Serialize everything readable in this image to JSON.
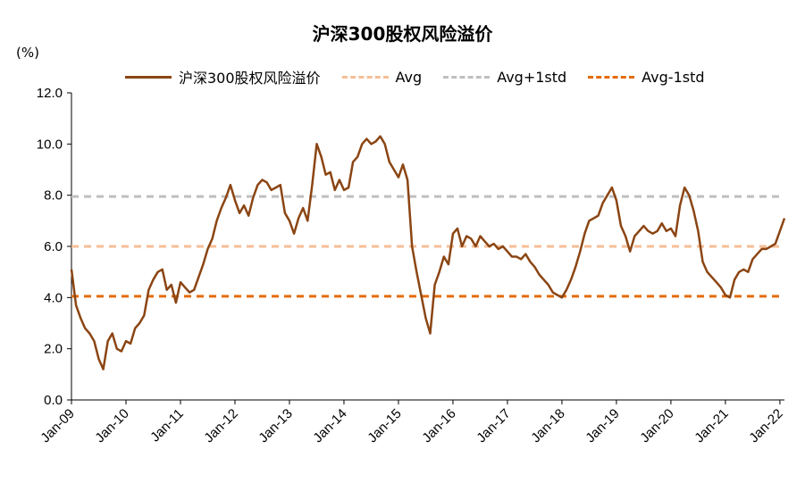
{
  "chart_data": {
    "type": "line",
    "title": "沪深300股权风险溢价",
    "ylabel": "(%)",
    "xlabel": "",
    "ylim": [
      0,
      12
    ],
    "yticks": [
      "0.0",
      "2.0",
      "4.0",
      "6.0",
      "8.0",
      "10.0",
      "12.0"
    ],
    "xticks": [
      "Jan-09",
      "Jan-10",
      "Jan-11",
      "Jan-12",
      "Jan-13",
      "Jan-14",
      "Jan-15",
      "Jan-16",
      "Jan-17",
      "Jan-18",
      "Jan-19",
      "Jan-20",
      "Jan-21",
      "Jan-22"
    ],
    "xlim": [
      "2009-01",
      "2022-02"
    ],
    "legend_position": "top",
    "grid": false,
    "series": [
      {
        "name": "沪深300股权风险溢价",
        "style": "solid",
        "color": "#8B4513",
        "points": [
          [
            "2009-01",
            5.1
          ],
          [
            "2009-02",
            3.7
          ],
          [
            "2009-03",
            3.2
          ],
          [
            "2009-04",
            2.8
          ],
          [
            "2009-05",
            2.6
          ],
          [
            "2009-06",
            2.3
          ],
          [
            "2009-07",
            1.6
          ],
          [
            "2009-08",
            1.2
          ],
          [
            "2009-09",
            2.3
          ],
          [
            "2009-10",
            2.6
          ],
          [
            "2009-11",
            2.0
          ],
          [
            "2009-12",
            1.9
          ],
          [
            "2010-01",
            2.3
          ],
          [
            "2010-02",
            2.2
          ],
          [
            "2010-03",
            2.8
          ],
          [
            "2010-04",
            3.0
          ],
          [
            "2010-05",
            3.3
          ],
          [
            "2010-06",
            4.3
          ],
          [
            "2010-07",
            4.7
          ],
          [
            "2010-08",
            5.0
          ],
          [
            "2010-09",
            5.1
          ],
          [
            "2010-10",
            4.3
          ],
          [
            "2010-11",
            4.5
          ],
          [
            "2010-12",
            3.8
          ],
          [
            "2011-01",
            4.6
          ],
          [
            "2011-02",
            4.4
          ],
          [
            "2011-03",
            4.2
          ],
          [
            "2011-04",
            4.3
          ],
          [
            "2011-05",
            4.8
          ],
          [
            "2011-06",
            5.3
          ],
          [
            "2011-07",
            5.9
          ],
          [
            "2011-08",
            6.3
          ],
          [
            "2011-09",
            7.0
          ],
          [
            "2011-10",
            7.5
          ],
          [
            "2011-11",
            7.9
          ],
          [
            "2011-12",
            8.4
          ],
          [
            "2012-01",
            7.8
          ],
          [
            "2012-02",
            7.3
          ],
          [
            "2012-03",
            7.6
          ],
          [
            "2012-04",
            7.2
          ],
          [
            "2012-05",
            7.9
          ],
          [
            "2012-06",
            8.4
          ],
          [
            "2012-07",
            8.6
          ],
          [
            "2012-08",
            8.5
          ],
          [
            "2012-09",
            8.2
          ],
          [
            "2012-10",
            8.3
          ],
          [
            "2012-11",
            8.4
          ],
          [
            "2012-12",
            7.3
          ],
          [
            "2013-01",
            7.0
          ],
          [
            "2013-02",
            6.5
          ],
          [
            "2013-03",
            7.1
          ],
          [
            "2013-04",
            7.5
          ],
          [
            "2013-05",
            7.0
          ],
          [
            "2013-06",
            8.4
          ],
          [
            "2013-07",
            10.0
          ],
          [
            "2013-08",
            9.5
          ],
          [
            "2013-09",
            8.8
          ],
          [
            "2013-10",
            8.9
          ],
          [
            "2013-11",
            8.2
          ],
          [
            "2013-12",
            8.6
          ],
          [
            "2014-01",
            8.2
          ],
          [
            "2014-02",
            8.3
          ],
          [
            "2014-03",
            9.3
          ],
          [
            "2014-04",
            9.5
          ],
          [
            "2014-05",
            10.0
          ],
          [
            "2014-06",
            10.2
          ],
          [
            "2014-07",
            10.0
          ],
          [
            "2014-08",
            10.1
          ],
          [
            "2014-09",
            10.3
          ],
          [
            "2014-10",
            10.0
          ],
          [
            "2014-11",
            9.3
          ],
          [
            "2014-12",
            9.0
          ],
          [
            "2015-01",
            8.7
          ],
          [
            "2015-02",
            9.2
          ],
          [
            "2015-03",
            8.6
          ],
          [
            "2015-04",
            6.0
          ],
          [
            "2015-05",
            5.0
          ],
          [
            "2015-06",
            4.1
          ],
          [
            "2015-07",
            3.2
          ],
          [
            "2015-08",
            2.6
          ],
          [
            "2015-09",
            4.5
          ],
          [
            "2015-10",
            5.0
          ],
          [
            "2015-11",
            5.6
          ],
          [
            "2015-12",
            5.3
          ],
          [
            "2016-01",
            6.5
          ],
          [
            "2016-02",
            6.7
          ],
          [
            "2016-03",
            6.0
          ],
          [
            "2016-04",
            6.4
          ],
          [
            "2016-05",
            6.3
          ],
          [
            "2016-06",
            6.0
          ],
          [
            "2016-07",
            6.4
          ],
          [
            "2016-08",
            6.2
          ],
          [
            "2016-09",
            6.0
          ],
          [
            "2016-10",
            6.1
          ],
          [
            "2016-11",
            5.9
          ],
          [
            "2016-12",
            6.0
          ],
          [
            "2017-01",
            5.8
          ],
          [
            "2017-02",
            5.6
          ],
          [
            "2017-03",
            5.6
          ],
          [
            "2017-04",
            5.5
          ],
          [
            "2017-05",
            5.7
          ],
          [
            "2017-06",
            5.4
          ],
          [
            "2017-07",
            5.2
          ],
          [
            "2017-08",
            4.9
          ],
          [
            "2017-09",
            4.7
          ],
          [
            "2017-10",
            4.5
          ],
          [
            "2017-11",
            4.2
          ],
          [
            "2017-12",
            4.1
          ],
          [
            "2018-01",
            4.0
          ],
          [
            "2018-02",
            4.3
          ],
          [
            "2018-03",
            4.7
          ],
          [
            "2018-04",
            5.2
          ],
          [
            "2018-05",
            5.8
          ],
          [
            "2018-06",
            6.5
          ],
          [
            "2018-07",
            7.0
          ],
          [
            "2018-08",
            7.1
          ],
          [
            "2018-09",
            7.2
          ],
          [
            "2018-10",
            7.7
          ],
          [
            "2018-11",
            8.0
          ],
          [
            "2018-12",
            8.3
          ],
          [
            "2019-01",
            7.8
          ],
          [
            "2019-02",
            6.8
          ],
          [
            "2019-03",
            6.4
          ],
          [
            "2019-04",
            5.8
          ],
          [
            "2019-05",
            6.4
          ],
          [
            "2019-06",
            6.6
          ],
          [
            "2019-07",
            6.8
          ],
          [
            "2019-08",
            6.6
          ],
          [
            "2019-09",
            6.5
          ],
          [
            "2019-10",
            6.6
          ],
          [
            "2019-11",
            6.9
          ],
          [
            "2019-12",
            6.6
          ],
          [
            "2020-01",
            6.7
          ],
          [
            "2020-02",
            6.4
          ],
          [
            "2020-03",
            7.6
          ],
          [
            "2020-04",
            8.3
          ],
          [
            "2020-05",
            8.0
          ],
          [
            "2020-06",
            7.4
          ],
          [
            "2020-07",
            6.6
          ],
          [
            "2020-08",
            5.4
          ],
          [
            "2020-09",
            5.0
          ],
          [
            "2020-10",
            4.8
          ],
          [
            "2020-11",
            4.6
          ],
          [
            "2020-12",
            4.4
          ],
          [
            "2021-01",
            4.1
          ],
          [
            "2021-02",
            4.0
          ],
          [
            "2021-03",
            4.7
          ],
          [
            "2021-04",
            5.0
          ],
          [
            "2021-05",
            5.1
          ],
          [
            "2021-06",
            5.0
          ],
          [
            "2021-07",
            5.5
          ],
          [
            "2021-08",
            5.7
          ],
          [
            "2021-09",
            5.9
          ],
          [
            "2021-10",
            5.9
          ],
          [
            "2021-11",
            6.0
          ],
          [
            "2021-12",
            6.1
          ],
          [
            "2022-01",
            6.6
          ],
          [
            "2022-02",
            7.1
          ]
        ]
      },
      {
        "name": "Avg",
        "style": "dashed",
        "color": "#F6BE96",
        "value": 6.0
      },
      {
        "name": "Avg+1std",
        "style": "dashed",
        "color": "#BFBFBF",
        "value": 7.95
      },
      {
        "name": "Avg-1std",
        "style": "dashed",
        "color": "#E46C0A",
        "value": 4.05
      }
    ]
  }
}
